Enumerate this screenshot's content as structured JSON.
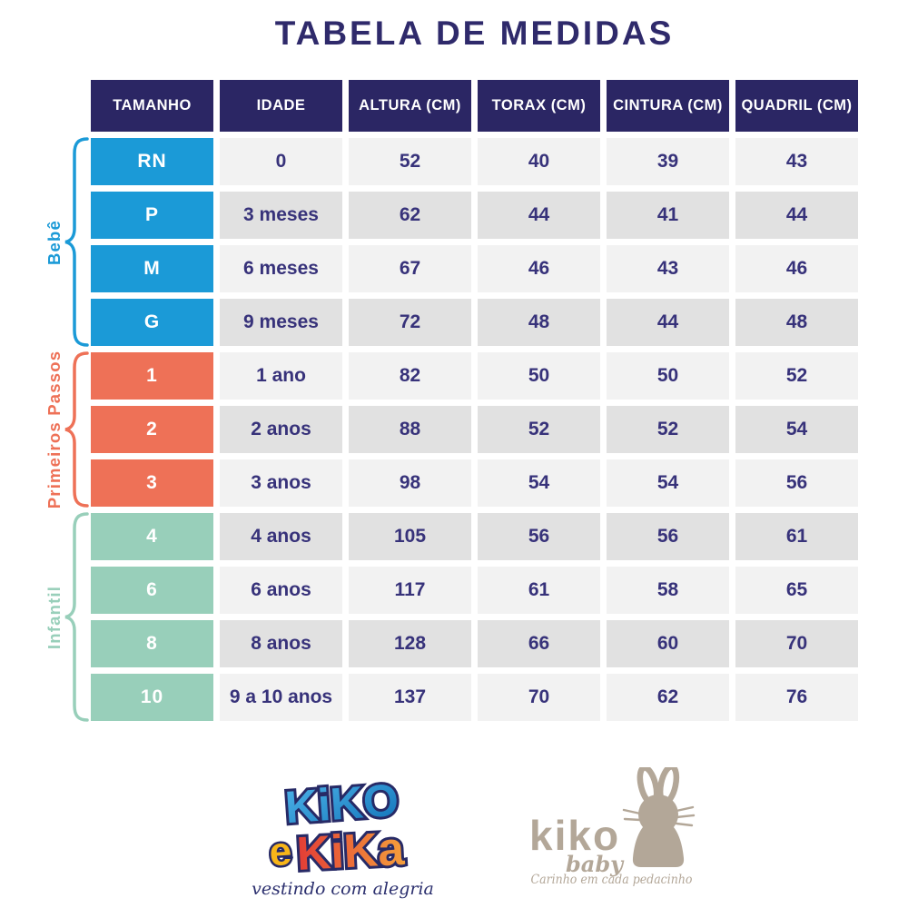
{
  "title": "TABELA DE MEDIDAS",
  "chart_data": {
    "type": "table",
    "title": "TABELA DE MEDIDAS",
    "columns": [
      "TAMANHO",
      "IDADE",
      "ALTURA (CM)",
      "TORAX (CM)",
      "CINTURA (CM)",
      "QUADRIL (CM)"
    ],
    "groups": [
      {
        "label": "Bebê",
        "color": "#1b9ad7",
        "rows": [
          [
            "RN",
            "0",
            "52",
            "40",
            "39",
            "43"
          ],
          [
            "P",
            "3 meses",
            "62",
            "44",
            "41",
            "44"
          ],
          [
            "M",
            "6 meses",
            "67",
            "46",
            "43",
            "46"
          ],
          [
            "G",
            "9 meses",
            "72",
            "48",
            "44",
            "48"
          ]
        ]
      },
      {
        "label": "Primeiros Passos",
        "color": "#ee7157",
        "rows": [
          [
            "1",
            "1 ano",
            "82",
            "50",
            "50",
            "52"
          ],
          [
            "2",
            "2 anos",
            "88",
            "52",
            "52",
            "54"
          ],
          [
            "3",
            "3 anos",
            "98",
            "54",
            "54",
            "56"
          ]
        ]
      },
      {
        "label": "Infantil",
        "color": "#98cfba",
        "rows": [
          [
            "4",
            "4 anos",
            "105",
            "56",
            "56",
            "61"
          ],
          [
            "6",
            "6 anos",
            "117",
            "61",
            "58",
            "65"
          ],
          [
            "8",
            "8 anos",
            "128",
            "66",
            "60",
            "70"
          ],
          [
            "10",
            "9 a 10 anos",
            "137",
            "70",
            "62",
            "76"
          ]
        ]
      }
    ]
  },
  "footer": {
    "logo_left": {
      "line1": "KiKO",
      "line2_e": "e",
      "line2_kika": "KiKa",
      "tagline": "vestindo com alegria"
    },
    "logo_right": {
      "name": "kiko",
      "sub": "baby",
      "tagline": "Carinho em cada pedacinho",
      "icon": "bunny"
    }
  },
  "colors": {
    "navy": "#2b2664",
    "text_navy": "#37327a",
    "title": "#2f2a6b",
    "blue": "#1b9ad7",
    "coral": "#ee7157",
    "mint": "#98cfba",
    "row_light": "#f2f2f2",
    "row_dark": "#e1e1e1",
    "taupe": "#b3a798",
    "script_navy": "#2b2f6e"
  }
}
